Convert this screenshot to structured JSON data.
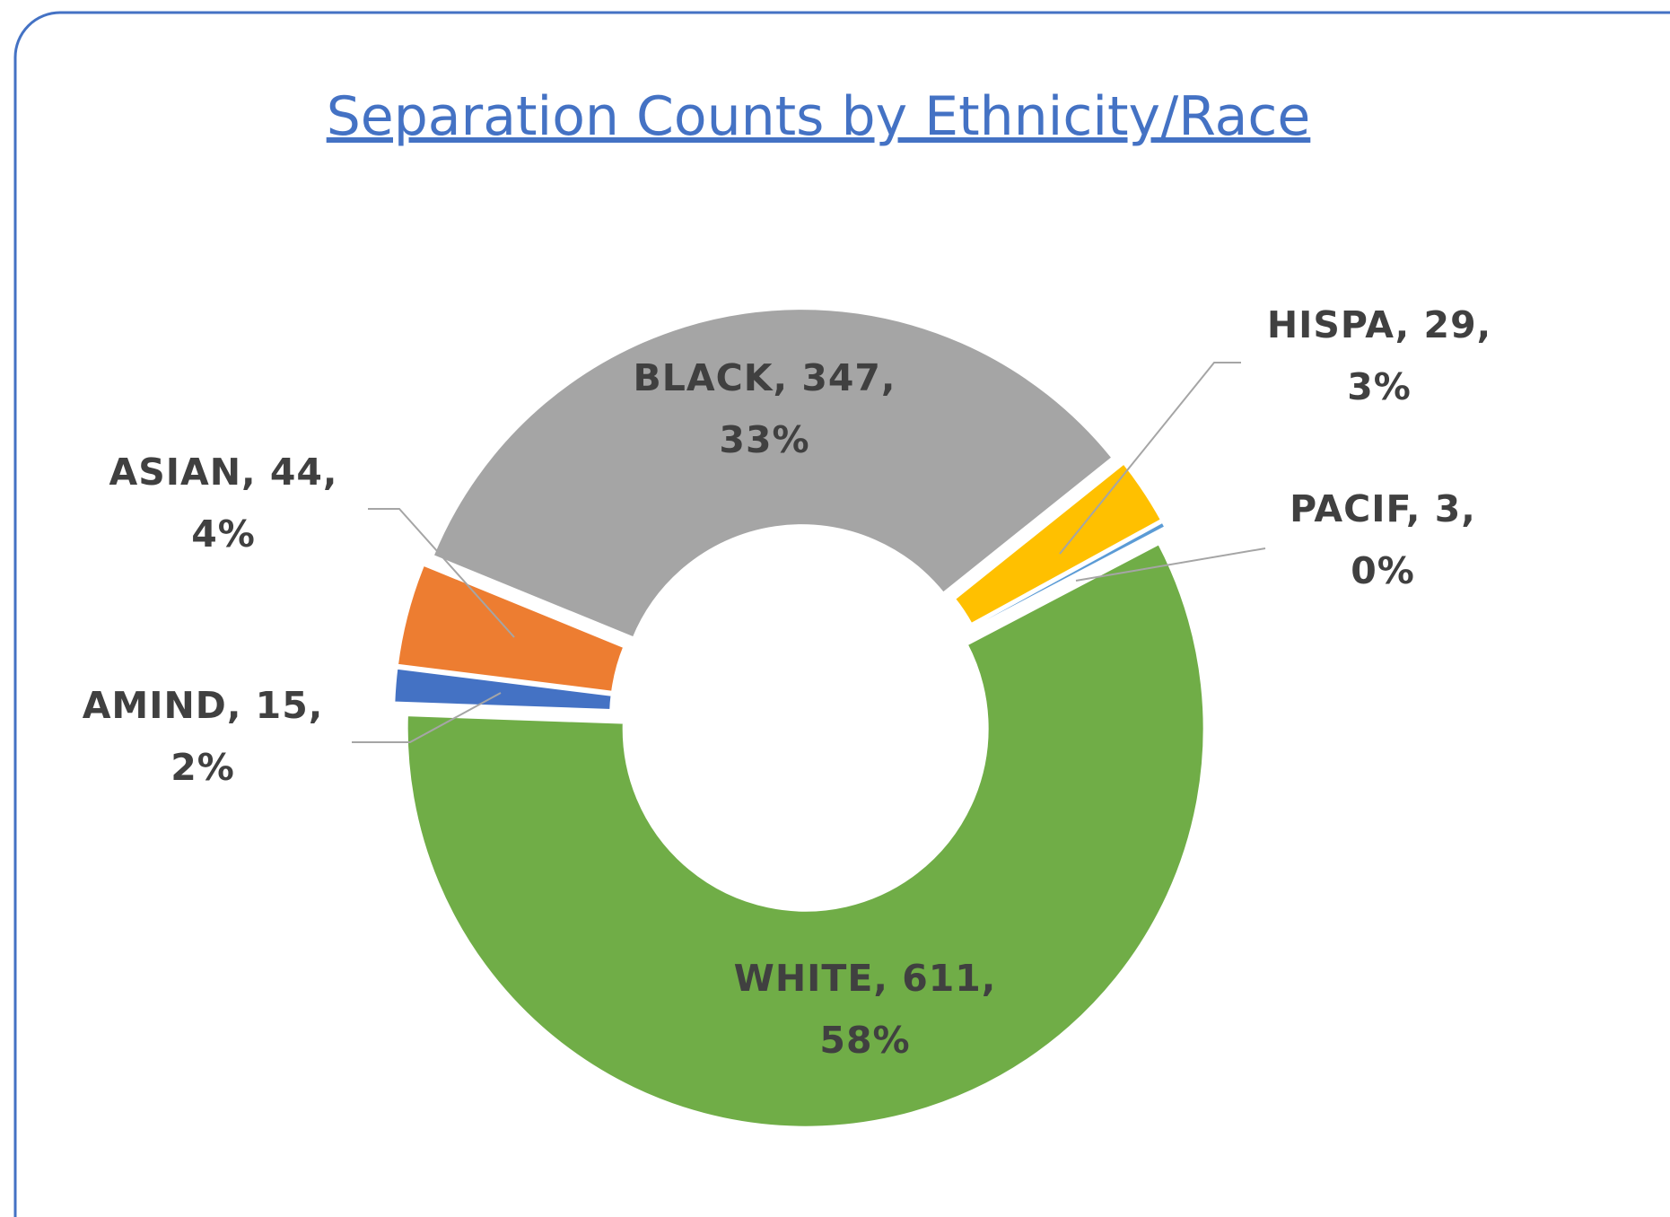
{
  "chart_data": {
    "type": "donut",
    "title": "Separation Counts by Ethnicity/Race",
    "categories": [
      "AMIND",
      "ASIAN",
      "BLACK",
      "HISPA",
      "PACIF",
      "WHITE"
    ],
    "values": [
      15,
      44,
      347,
      29,
      3,
      611
    ],
    "value_labels": [
      "AMIND, 15, 2%",
      "ASIAN, 44, 4%",
      "BLACK, 347, 33%",
      "HISPA, 29, 3%",
      "PACIF, 3, 0%",
      "WHITE, 611, 58%"
    ],
    "colors": [
      "#4472c4",
      "#ed7d31",
      "#a5a5a5",
      "#ffc000",
      "#5b9bd5",
      "#70ad47"
    ],
    "start_angle": 272
  }
}
